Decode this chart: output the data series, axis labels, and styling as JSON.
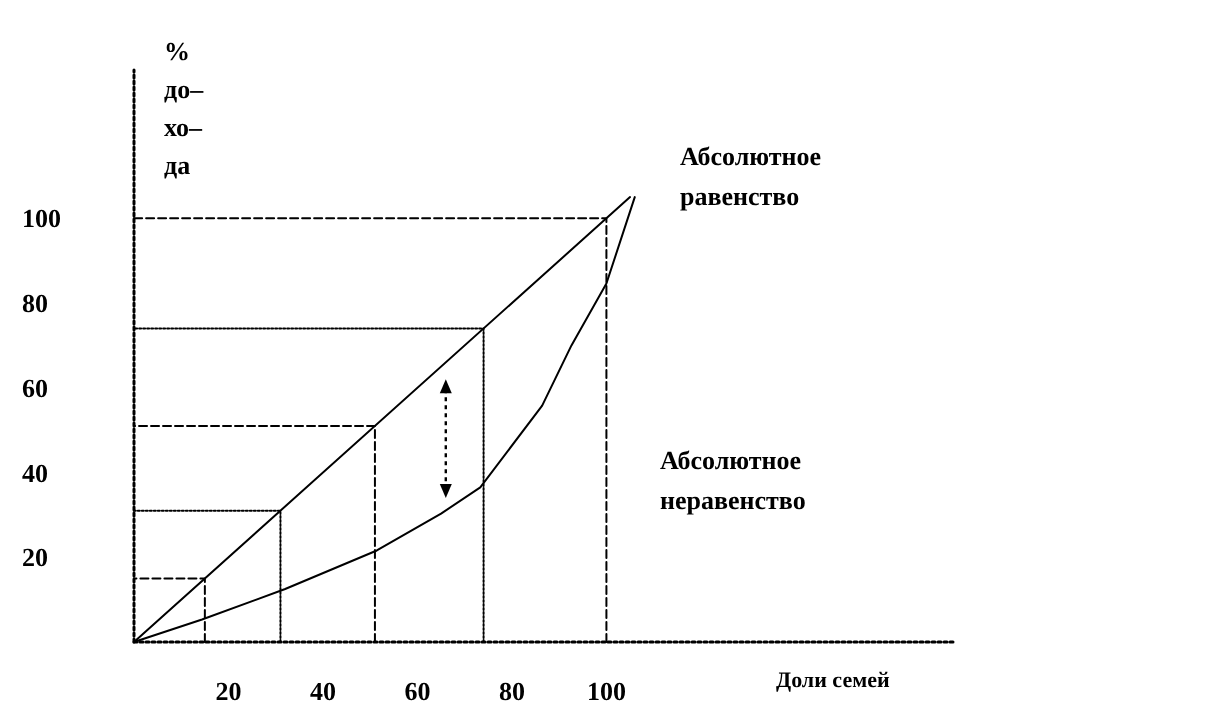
{
  "chart_data": {
    "type": "line",
    "xlabel": "Доли семей",
    "ylabel": "%\nдо–\nхо–\nда",
    "series": [
      {
        "color": "#000000",
        "x": [
          0,
          105
        ],
        "values": [
          0,
          105
        ]
      },
      {
        "color": "#000000",
        "x": [
          0,
          14.4,
          32,
          51.4,
          65,
          73.3,
          86.4,
          92.6,
          100,
          106
        ],
        "values": [
          0,
          5.3,
          12.5,
          21.6,
          30.3,
          36.5,
          55.8,
          70,
          84.6,
          105
        ]
      },
      {
        "color": "#000000",
        "line_style": "dashed",
        "x": [
          15,
          15,
          0
        ],
        "values": [
          0,
          15,
          15
        ]
      },
      {
        "color": "#000000",
        "line_style": "dotted",
        "x": [
          31,
          31,
          0
        ],
        "values": [
          0,
          31,
          31
        ]
      },
      {
        "color": "#000000",
        "line_style": "dashed",
        "x": [
          51,
          51,
          0
        ],
        "values": [
          0,
          51,
          51
        ]
      },
      {
        "color": "#000000",
        "line_style": "dotted",
        "x": [
          74,
          74,
          0
        ],
        "values": [
          0,
          74,
          74
        ]
      },
      {
        "color": "#000000",
        "line_style": "dashed",
        "x": [
          100,
          100,
          0
        ],
        "values": [
          0,
          100,
          100
        ]
      }
    ],
    "annotations": [
      "Абсолютное\nравенство",
      "Абсолютное\nнеравенство"
    ],
    "xlim": [
      0,
      174
    ],
    "ylim": [
      0,
      135
    ],
    "xticks": [
      20,
      40,
      60,
      80,
      100
    ],
    "yticks": [
      20,
      40,
      60,
      80,
      100
    ],
    "grid": false,
    "marker": "none",
    "line_style": "solid"
  }
}
